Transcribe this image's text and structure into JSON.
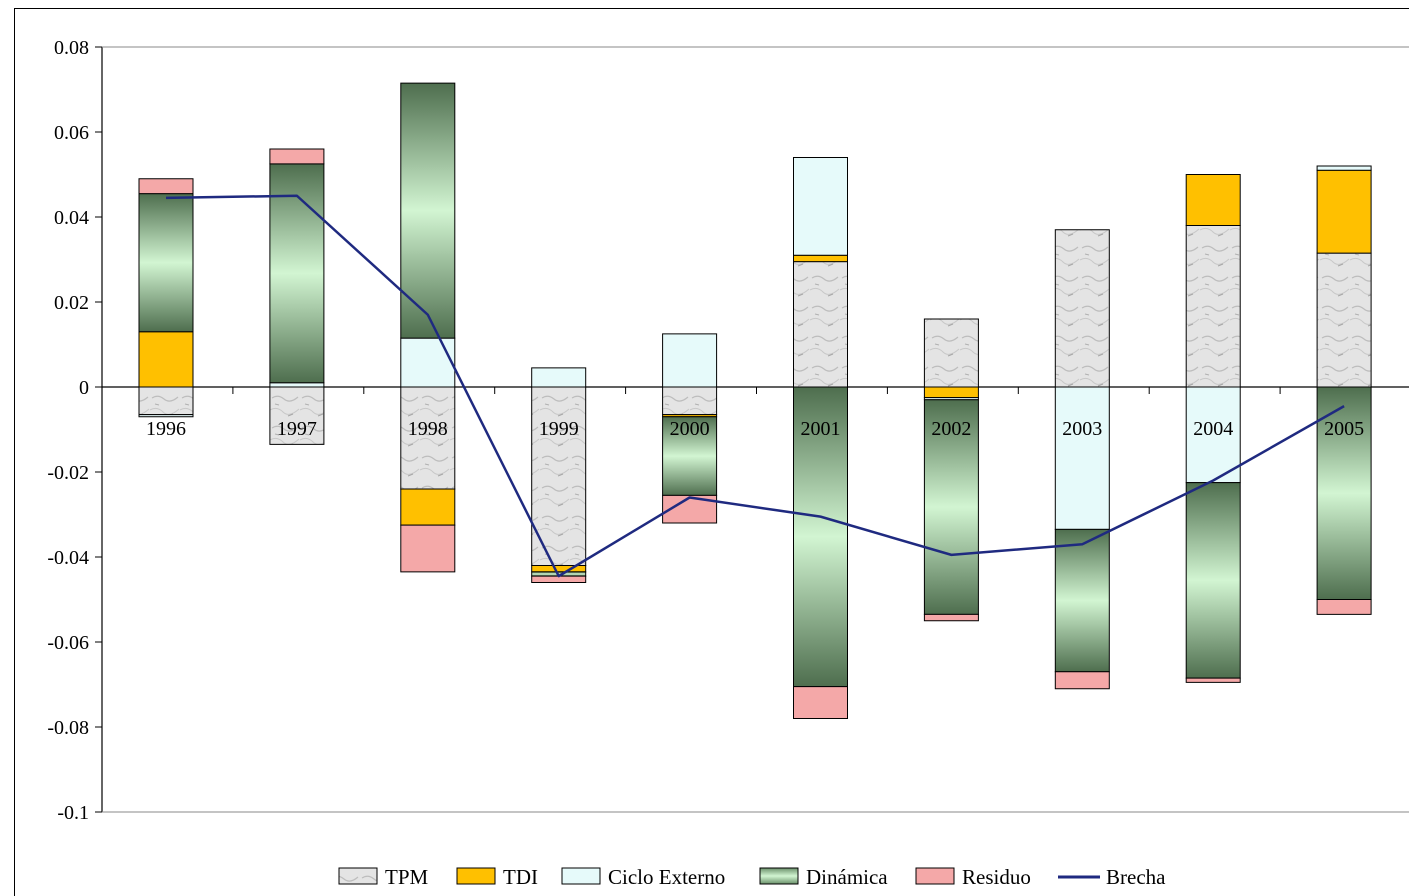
{
  "chart_data": {
    "type": "bar",
    "stacked": true,
    "title": "",
    "xlabel": "",
    "ylabel": "",
    "ylim": [
      -0.1,
      0.08
    ],
    "yticks": [
      0.08,
      0.06,
      0.04,
      0.02,
      0,
      -0.02,
      -0.04,
      -0.06,
      -0.08,
      -0.1
    ],
    "ytick_labels": [
      "0.08",
      "0.06",
      "0.04",
      "0.02",
      "0",
      "-0.02",
      "-0.04",
      "-0.06",
      "-0.08",
      "-0.1"
    ],
    "grid": false,
    "legend_position": "bottom",
    "categories": [
      "1996",
      "1997",
      "1998",
      "1999",
      "2000",
      "2001",
      "2002",
      "2003",
      "2004",
      "2005"
    ],
    "series": [
      {
        "name": "TPM",
        "color": "#d9d9d9",
        "values": [
          -0.0065,
          -0.0135,
          -0.024,
          -0.042,
          -0.0065,
          0.0295,
          0.016,
          0.037,
          0.038,
          0.0315
        ]
      },
      {
        "name": "TDI",
        "color": "#ffc000",
        "values": [
          0.013,
          0.0,
          -0.0085,
          -0.0015,
          -0.0005,
          0.0015,
          -0.0025,
          0.0,
          0.012,
          0.0195
        ]
      },
      {
        "name": "Ciclo Externo",
        "color": "#e6fafa",
        "values": [
          -0.0005,
          0.001,
          0.0115,
          0.0045,
          0.0125,
          0.023,
          -0.0005,
          -0.0335,
          -0.0225,
          0.001
        ]
      },
      {
        "name": "Dinámica",
        "color": "#7fbf7f",
        "values": [
          0.0325,
          0.0515,
          0.06,
          -0.001,
          -0.0185,
          -0.0705,
          -0.0505,
          -0.0335,
          -0.046,
          -0.05
        ]
      },
      {
        "name": "Residuo",
        "color": "#f4a8a8",
        "values": [
          0.0035,
          0.0035,
          -0.011,
          -0.0015,
          -0.0065,
          -0.0075,
          -0.0015,
          -0.004,
          -0.001,
          -0.0035
        ]
      }
    ],
    "line_series": {
      "name": "Brecha",
      "color": "#1f2a80",
      "values": [
        0.0445,
        0.045,
        0.017,
        -0.0445,
        -0.026,
        -0.0305,
        -0.0395,
        -0.037,
        -0.022,
        -0.0045
      ]
    }
  }
}
